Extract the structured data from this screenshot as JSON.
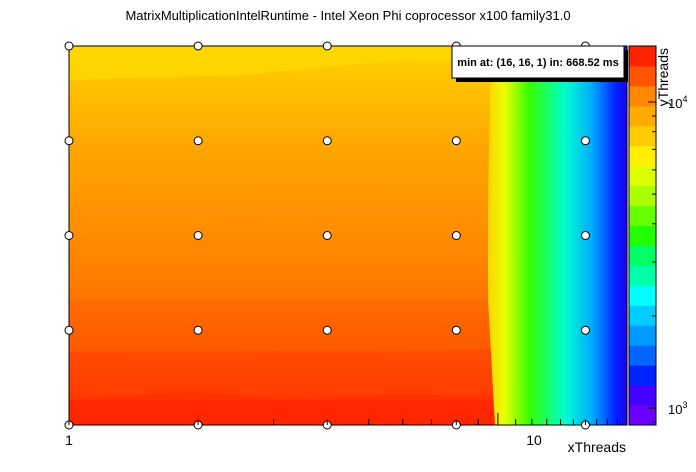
{
  "chart_data": {
    "type": "heatmap",
    "title": "MatrixMultiplicationIntelRuntime - Intel Xeon Phi coprocessor x100 family31.0",
    "xlabel": "xThreads",
    "ylabel": "yThreads",
    "x_scale": "log",
    "y_scale": "log",
    "z_scale": "log",
    "xlim": [
      1,
      20
    ],
    "ylim": [
      800,
      16000
    ],
    "x_tick_labels": [
      "1",
      "10"
    ],
    "y_tick_labels": [
      "10",
      "10"
    ],
    "y_tick_exponents": [
      "4",
      "3"
    ],
    "min_label": "min at: (16, 16, 1) in: 668.52 ms",
    "x_samples": [
      1,
      2,
      4,
      8,
      16
    ],
    "y_samples": [
      1,
      2,
      4,
      8,
      16
    ],
    "colors": {
      "red": "#ff2200",
      "orange": "#ffa500",
      "yellow": "#ffd700",
      "green": "#22ee00",
      "cyan": "#00ffff",
      "blue": "#0033ff",
      "violet": "#6a00ff"
    }
  }
}
